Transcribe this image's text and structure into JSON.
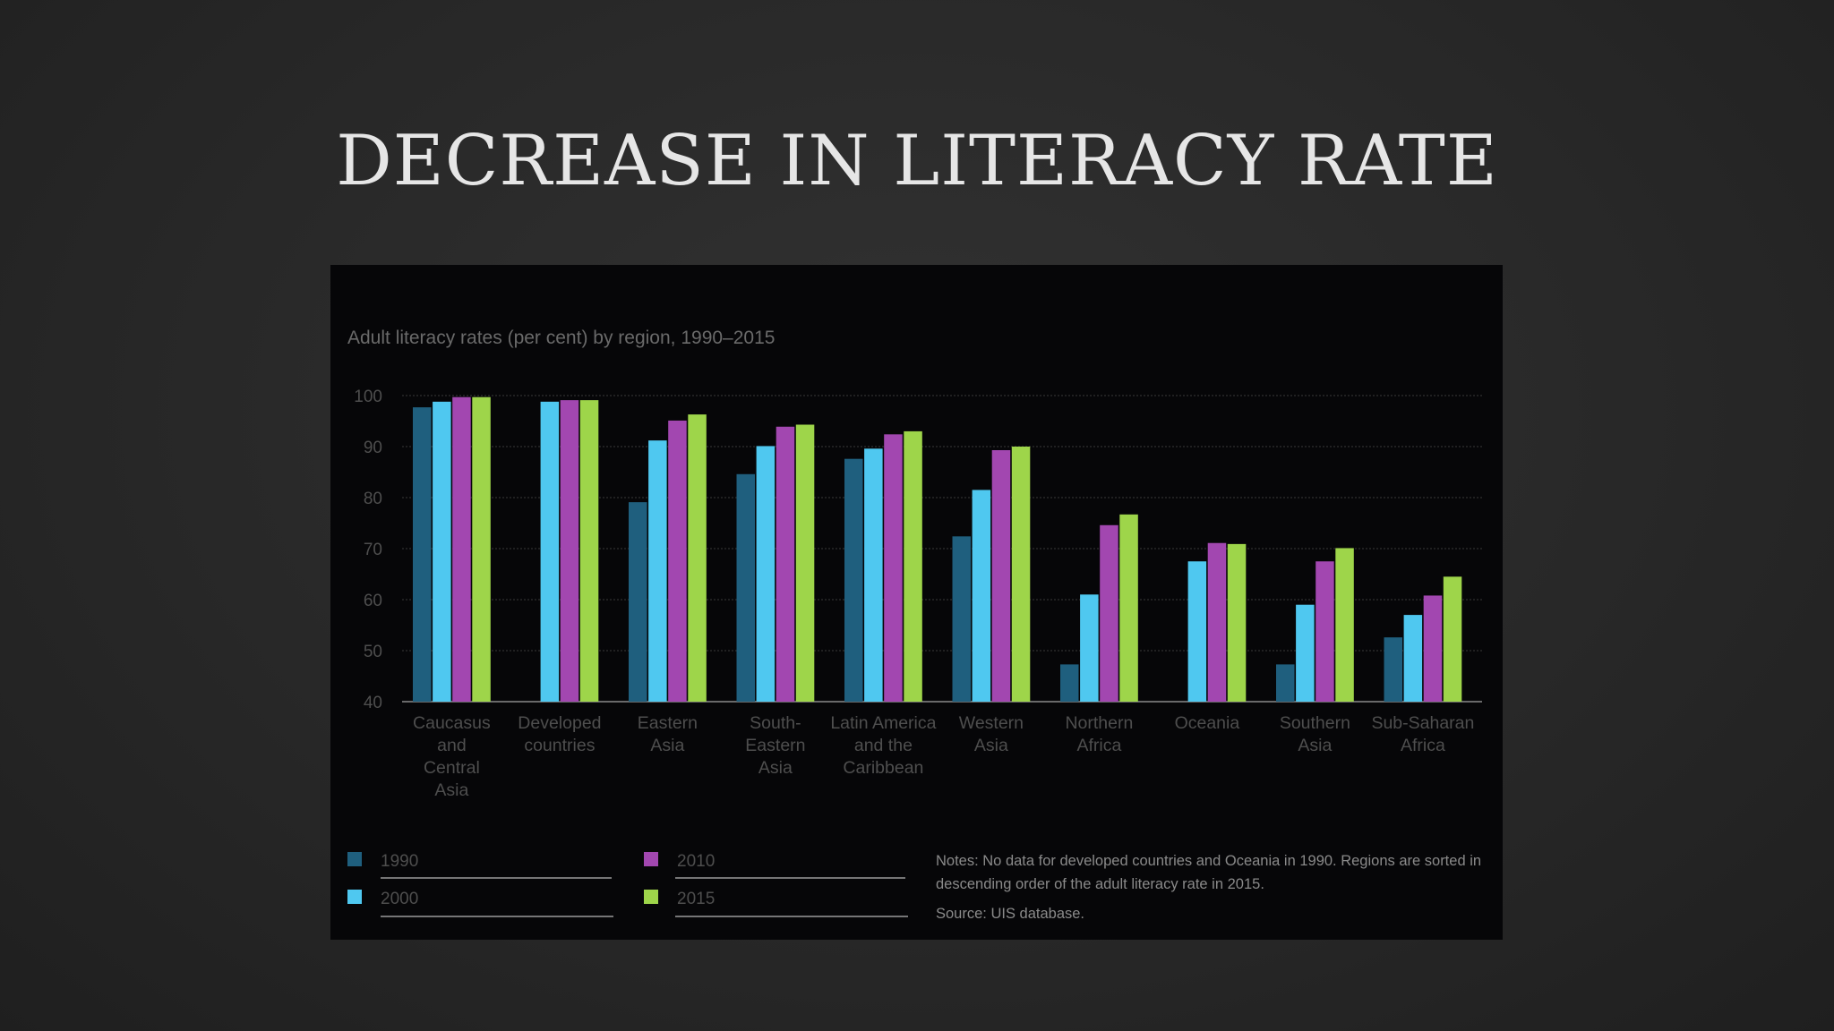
{
  "slide": {
    "title": "DECREASE IN LITERACY RATE"
  },
  "chart_data": {
    "type": "bar",
    "title": "Adult literacy rates (per cent) by region, 1990–2015",
    "xlabel": "",
    "ylabel": "",
    "ylim": [
      40,
      100
    ],
    "yticks": [
      "100",
      "90",
      "80",
      "70",
      "60",
      "50",
      "40"
    ],
    "grid": true,
    "legend_position": "bottom-left",
    "categories": [
      [
        "Caucasus",
        "and",
        "Central",
        "Asia"
      ],
      [
        "Developed",
        "countries"
      ],
      [
        "Eastern",
        "Asia"
      ],
      [
        "South-",
        "Eastern",
        "Asia"
      ],
      [
        "Latin America",
        "and the",
        "Caribbean"
      ],
      [
        "Western",
        "Asia"
      ],
      [
        "Northern",
        "Africa"
      ],
      [
        "Oceania"
      ],
      [
        "Southern",
        "Asia"
      ],
      [
        "Sub-Saharan",
        "Africa"
      ]
    ],
    "series": [
      {
        "name": "1990",
        "color": "#1f5f7e",
        "values": [
          97.7,
          null,
          79.1,
          84.6,
          87.6,
          72.4,
          47.3,
          null,
          47.3,
          52.6
        ]
      },
      {
        "name": "2000",
        "color": "#4fc8f0",
        "values": [
          98.8,
          98.8,
          91.2,
          90.1,
          89.6,
          81.5,
          61.0,
          67.5,
          59.0,
          57.0
        ]
      },
      {
        "name": "2010",
        "color": "#a247b0",
        "values": [
          99.7,
          99.1,
          95.1,
          93.9,
          92.4,
          89.3,
          74.6,
          71.1,
          67.5,
          60.8
        ]
      },
      {
        "name": "2015",
        "color": "#9ed54a",
        "values": [
          99.7,
          99.1,
          96.3,
          94.3,
          93.0,
          90.0,
          76.7,
          70.9,
          70.1,
          64.5
        ]
      }
    ],
    "notes": [
      "Notes: No data for developed countries and Oceania in 1990. Regions are sorted in",
      "descending order of the adult literacy rate in 2015."
    ],
    "source": "Source: UIS database."
  }
}
